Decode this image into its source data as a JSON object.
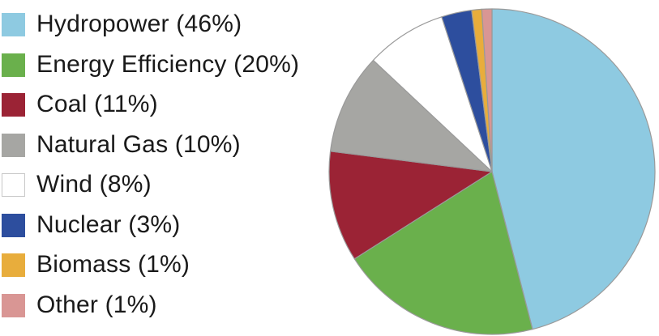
{
  "chart_data": {
    "type": "pie",
    "title": "",
    "legend_position": "left",
    "slices": [
      {
        "label": "Hydropower (46%)",
        "name": "Hydropower",
        "value": 46,
        "color": "#8ecae1"
      },
      {
        "label": "Energy Efficiency (20%)",
        "name": "Energy Efficiency",
        "value": 20,
        "color": "#6ab04c"
      },
      {
        "label": "Coal (11%)",
        "name": "Coal",
        "value": 11,
        "color": "#9b2335"
      },
      {
        "label": "Natural Gas (10%)",
        "name": "Natural Gas",
        "value": 10,
        "color": "#a6a6a3"
      },
      {
        "label": "Wind (8%)",
        "name": "Wind",
        "value": 8,
        "color": "#ffffff"
      },
      {
        "label": "Nuclear (3%)",
        "name": "Nuclear",
        "value": 3,
        "color": "#2d4e9e"
      },
      {
        "label": "Biomass (1%)",
        "name": "Biomass",
        "value": 1,
        "color": "#e8ad3c"
      },
      {
        "label": "Other (1%)",
        "name": "Other",
        "value": 1,
        "color": "#d99694"
      }
    ]
  }
}
